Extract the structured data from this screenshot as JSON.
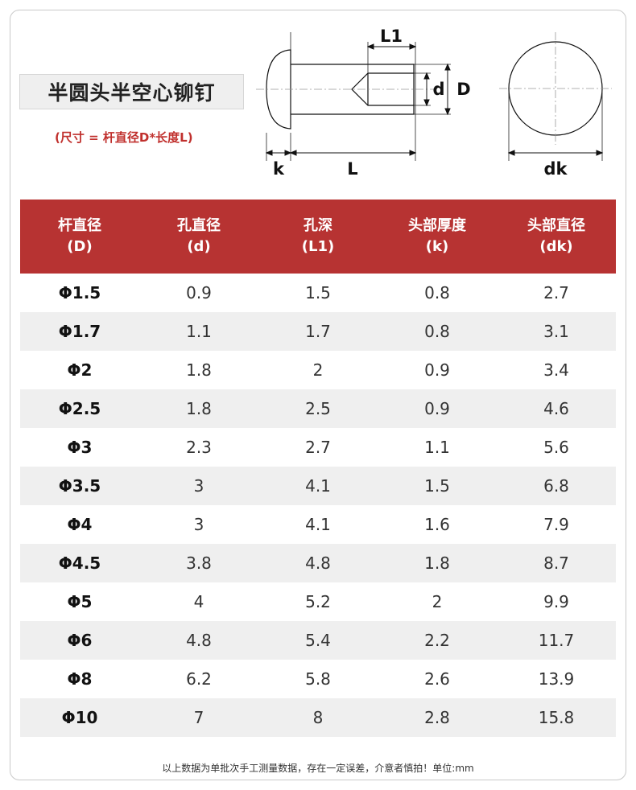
{
  "title": "半圆头半空心铆钉",
  "subtitle": "(尺寸 = 杆直径D*长度L)",
  "diagram": {
    "labels": {
      "l1": "L1",
      "d_small": "d",
      "d_big": "D",
      "k": "k",
      "l": "L",
      "dk": "dk"
    }
  },
  "table": {
    "headers": [
      {
        "name": "杆直径",
        "sym": "(D)"
      },
      {
        "name": "孔直径",
        "sym": "(d)"
      },
      {
        "name": "孔深",
        "sym": "(L1)"
      },
      {
        "name": "头部厚度",
        "sym": "(k)"
      },
      {
        "name": "头部直径",
        "sym": "(dk)"
      }
    ],
    "rows": [
      [
        "Φ1.5",
        "0.9",
        "1.5",
        "0.8",
        "2.7"
      ],
      [
        "Φ1.7",
        "1.1",
        "1.7",
        "0.8",
        "3.1"
      ],
      [
        "Φ2",
        "1.8",
        "2",
        "0.9",
        "3.4"
      ],
      [
        "Φ2.5",
        "1.8",
        "2.5",
        "0.9",
        "4.6"
      ],
      [
        "Φ3",
        "2.3",
        "2.7",
        "1.1",
        "5.6"
      ],
      [
        "Φ3.5",
        "3",
        "4.1",
        "1.5",
        "6.8"
      ],
      [
        "Φ4",
        "3",
        "4.1",
        "1.6",
        "7.9"
      ],
      [
        "Φ4.5",
        "3.8",
        "4.8",
        "1.8",
        "8.7"
      ],
      [
        "Φ5",
        "4",
        "5.2",
        "2",
        "9.9"
      ],
      [
        "Φ6",
        "4.8",
        "5.4",
        "2.2",
        "11.7"
      ],
      [
        "Φ8",
        "6.2",
        "5.8",
        "2.6",
        "13.9"
      ],
      [
        "Φ10",
        "7",
        "8",
        "2.8",
        "15.8"
      ]
    ]
  },
  "footnote": "以上数据为单批次手工测量数据，存在一定误差，介意者慎拍！单位:mm",
  "colors": {
    "header_bg": "#b73332",
    "subtitle": "#c0302d",
    "alt_row": "#efefef"
  }
}
